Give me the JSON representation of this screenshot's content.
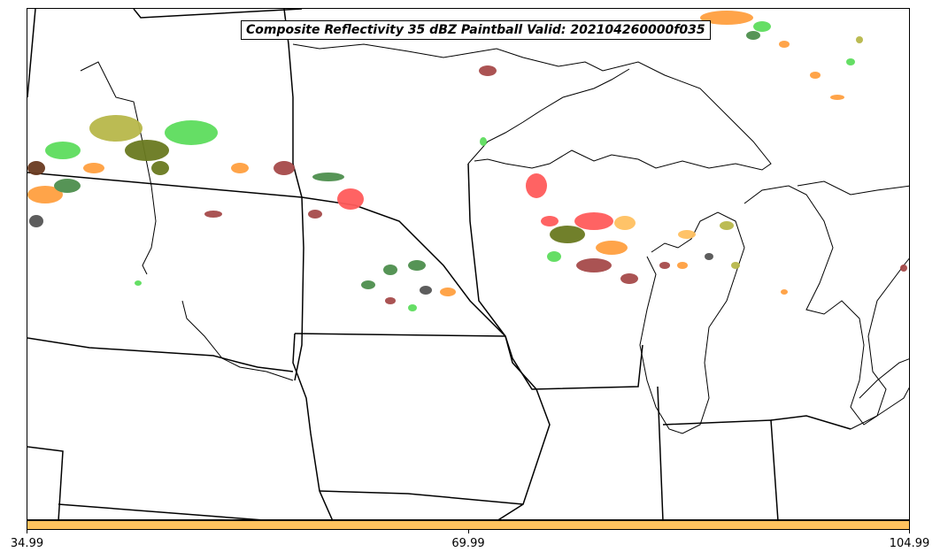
{
  "title": "Composite Reflectivity 35 dBZ Paintball Valid: 202104260000f035",
  "colors": {
    "colorbar_fill": "#ffc25e",
    "lines": "#000000",
    "member_red": "#ff5b5b",
    "member_darkred": "#a64a4a",
    "member_orange": "#ffa040",
    "member_lightorange": "#ffc060",
    "member_green": "#5ddd5d",
    "member_darkgreen": "#4e8f4e",
    "member_olive": "#b8b84a",
    "member_darkolive": "#6a7a20",
    "member_gray": "#555555"
  },
  "colorbar": {
    "ticks": [
      {
        "label": "34.99",
        "pos": 0
      },
      {
        "label": "69.99",
        "pos": 0.5
      },
      {
        "label": "104.99",
        "pos": 1
      }
    ]
  }
}
